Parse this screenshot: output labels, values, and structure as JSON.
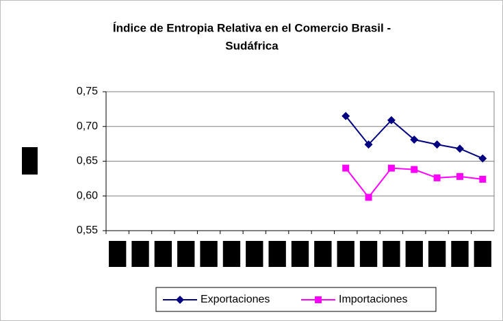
{
  "chart_data": {
    "type": "line",
    "title": [
      "Índice de Entropia Relativa en el Comercio Brasil -",
      "Sudáfrica"
    ],
    "categories": [
      null,
      null,
      null,
      null,
      null,
      null,
      null,
      null,
      null,
      null,
      null,
      null,
      null,
      null,
      null,
      null,
      null
    ],
    "series": [
      {
        "name": "Exportaciones",
        "color": "#000080",
        "marker": "diamond",
        "values": [
          null,
          null,
          null,
          null,
          null,
          null,
          null,
          null,
          null,
          null,
          0.715,
          0.674,
          0.709,
          0.681,
          0.674,
          0.668,
          0.654
        ]
      },
      {
        "name": "Importaciones",
        "color": "#ff00ff",
        "marker": "square",
        "values": [
          null,
          null,
          null,
          null,
          null,
          null,
          null,
          null,
          null,
          null,
          0.64,
          0.598,
          0.64,
          0.638,
          0.626,
          0.628,
          0.624
        ]
      }
    ],
    "ylim": [
      0.55,
      0.75
    ],
    "yticks": [
      {
        "value": 0.55,
        "label": "0,55"
      },
      {
        "value": 0.6,
        "label": "0,60"
      },
      {
        "value": 0.65,
        "label": "0,65"
      },
      {
        "value": 0.7,
        "label": "0,70"
      },
      {
        "value": 0.75,
        "label": "0,75"
      }
    ],
    "grid": true,
    "legend": "bottom"
  }
}
